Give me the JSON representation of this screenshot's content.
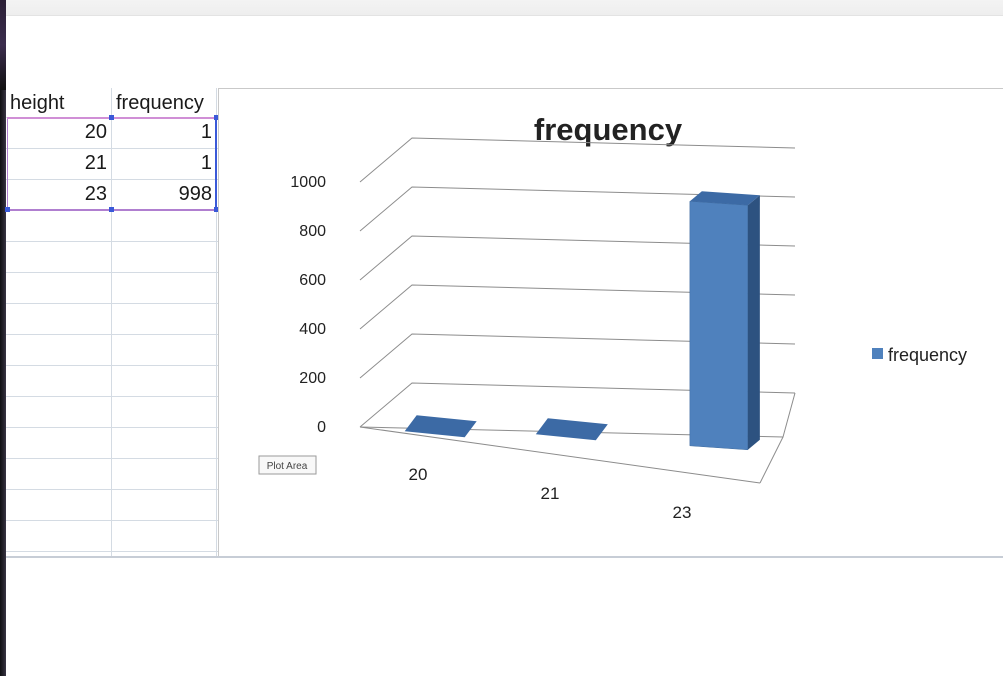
{
  "sheet": {
    "headers": [
      "height",
      "frequency"
    ],
    "rows": [
      {
        "height": "20",
        "frequency": "1"
      },
      {
        "height": "21",
        "frequency": "1"
      },
      {
        "height": "23",
        "frequency": "998"
      }
    ]
  },
  "plot_area_tooltip": "Plot Area",
  "colors": {
    "bar_front": "#4f81bd",
    "bar_side": "#2d5280",
    "bar_top": "#3c6aa5",
    "grid": "#8c8c8c",
    "selection": "#b07fd0",
    "selection_accent": "#3a59d8"
  },
  "chart_data": {
    "type": "bar",
    "style": "3d-column",
    "title": "frequency",
    "categories": [
      "20",
      "21",
      "23"
    ],
    "series": [
      {
        "name": "frequency",
        "values": [
          1,
          1,
          998
        ]
      }
    ],
    "ylim": [
      0,
      1000
    ],
    "yticks": [
      "0",
      "200",
      "400",
      "600",
      "800",
      "1000"
    ],
    "grid": true,
    "legend": "right"
  }
}
